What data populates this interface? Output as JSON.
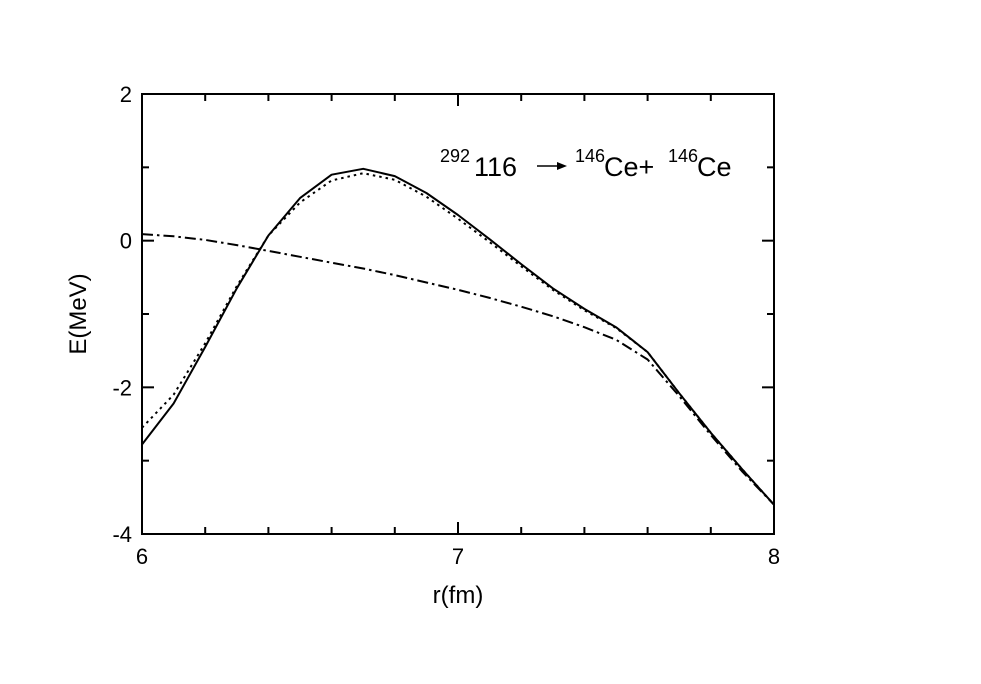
{
  "chart_data": {
    "type": "line",
    "title": "",
    "xlabel": "r(fm)",
    "ylabel": "E(MeV)",
    "xlim": [
      6,
      8
    ],
    "ylim": [
      -4,
      2
    ],
    "x_ticks": [
      "6",
      "7",
      "8"
    ],
    "y_ticks": [
      "2",
      "0",
      "-2",
      "-4"
    ],
    "grid": false,
    "legend": "none",
    "annotation": {
      "parent_mass": "292",
      "parent_z": "116",
      "arrow": "→",
      "fragment1_mass": "146",
      "fragment1_symbol": "Ce+",
      "fragment2_mass": "146",
      "fragment2_symbol": "Ce"
    },
    "series": [
      {
        "style": "solid",
        "x": [
          6.0,
          6.1,
          6.2,
          6.3,
          6.4,
          6.5,
          6.6,
          6.7,
          6.8,
          6.9,
          7.0,
          7.1,
          7.2,
          7.3,
          7.4,
          7.5,
          7.6,
          7.7,
          7.8,
          7.9,
          8.0
        ],
        "y": [
          -2.78,
          -2.22,
          -1.45,
          -0.65,
          0.07,
          0.58,
          0.9,
          0.98,
          0.88,
          0.65,
          0.35,
          0.02,
          -0.32,
          -0.65,
          -0.93,
          -1.18,
          -1.52,
          -2.08,
          -2.62,
          -3.12,
          -3.6
        ]
      },
      {
        "style": "dotted",
        "x": [
          6.0,
          6.1,
          6.2,
          6.3,
          6.4,
          6.5,
          6.6,
          6.7,
          6.8,
          6.9,
          7.0,
          7.1,
          7.2,
          7.3,
          7.4,
          7.5,
          7.6,
          7.7,
          7.8,
          7.9,
          8.0
        ],
        "y": [
          -2.55,
          -2.1,
          -1.4,
          -0.62,
          0.07,
          0.52,
          0.82,
          0.92,
          0.83,
          0.6,
          0.3,
          -0.02,
          -0.35,
          -0.67,
          -0.95,
          -1.19,
          -1.52,
          -2.08,
          -2.62,
          -3.12,
          -3.6
        ]
      },
      {
        "style": "dashdot",
        "x": [
          6.0,
          6.1,
          6.2,
          6.3,
          6.4,
          6.5,
          6.6,
          6.7,
          6.8,
          6.9,
          7.0,
          7.1,
          7.2,
          7.3,
          7.4,
          7.5,
          7.6,
          7.7,
          7.8,
          7.9,
          8.0
        ],
        "y": [
          0.09,
          0.06,
          0.01,
          -0.06,
          -0.14,
          -0.22,
          -0.3,
          -0.38,
          -0.47,
          -0.57,
          -0.67,
          -0.78,
          -0.9,
          -1.03,
          -1.18,
          -1.35,
          -1.62,
          -2.12,
          -2.65,
          -3.15,
          -3.6
        ]
      }
    ]
  }
}
